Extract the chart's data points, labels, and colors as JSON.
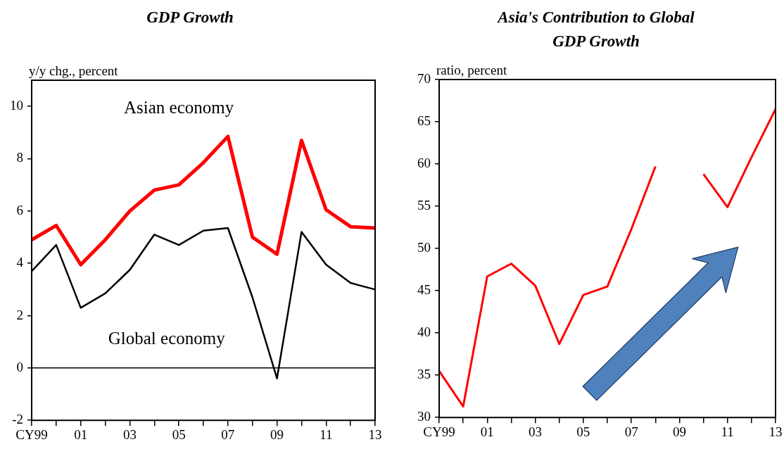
{
  "chart_data": [
    {
      "type": "line",
      "title": "GDP Growth",
      "ylabel": "y/y chg., percent",
      "categories": [
        "CY99",
        null,
        "01",
        null,
        "03",
        null,
        "05",
        null,
        "07",
        null,
        "09",
        null,
        "11",
        null,
        "13"
      ],
      "series": [
        {
          "name": "Asian economy",
          "color": "#ff0000",
          "values": [
            4.9,
            5.45,
            3.95,
            4.9,
            6.0,
            6.8,
            7.0,
            7.85,
            8.85,
            5.0,
            4.35,
            8.7,
            6.05,
            5.4,
            5.35
          ]
        },
        {
          "name": "Global economy",
          "color": "#000000",
          "values": [
            3.7,
            4.7,
            2.3,
            2.85,
            3.75,
            5.1,
            4.7,
            5.25,
            5.35,
            2.7,
            -0.4,
            5.2,
            3.95,
            3.25,
            3.0
          ]
        }
      ],
      "ylim": [
        -2,
        11
      ],
      "yticks": [
        -2,
        0,
        2,
        4,
        6,
        8,
        10
      ],
      "ref_lines": [
        {
          "axis": "y",
          "value": 0
        }
      ],
      "grid": false
    },
    {
      "type": "line",
      "title": "Asia's Contribution to Global GDP Growth",
      "ylabel": "ratio, percent",
      "categories": [
        "CY99",
        null,
        "01",
        null,
        "03",
        null,
        "05",
        null,
        "07",
        null,
        "09",
        null,
        "11",
        null,
        "13"
      ],
      "series": [
        {
          "color": "#ff0000",
          "values": [
            35.5,
            31.3,
            46.7,
            48.2,
            45.6,
            38.7,
            44.5,
            45.5,
            52.3,
            59.7,
            null,
            58.8,
            54.9,
            60.8,
            66.5
          ]
        }
      ],
      "ylim": [
        30,
        70
      ],
      "yticks": [
        30,
        35,
        40,
        45,
        50,
        55,
        60,
        65,
        70
      ],
      "grid": false
    }
  ]
}
